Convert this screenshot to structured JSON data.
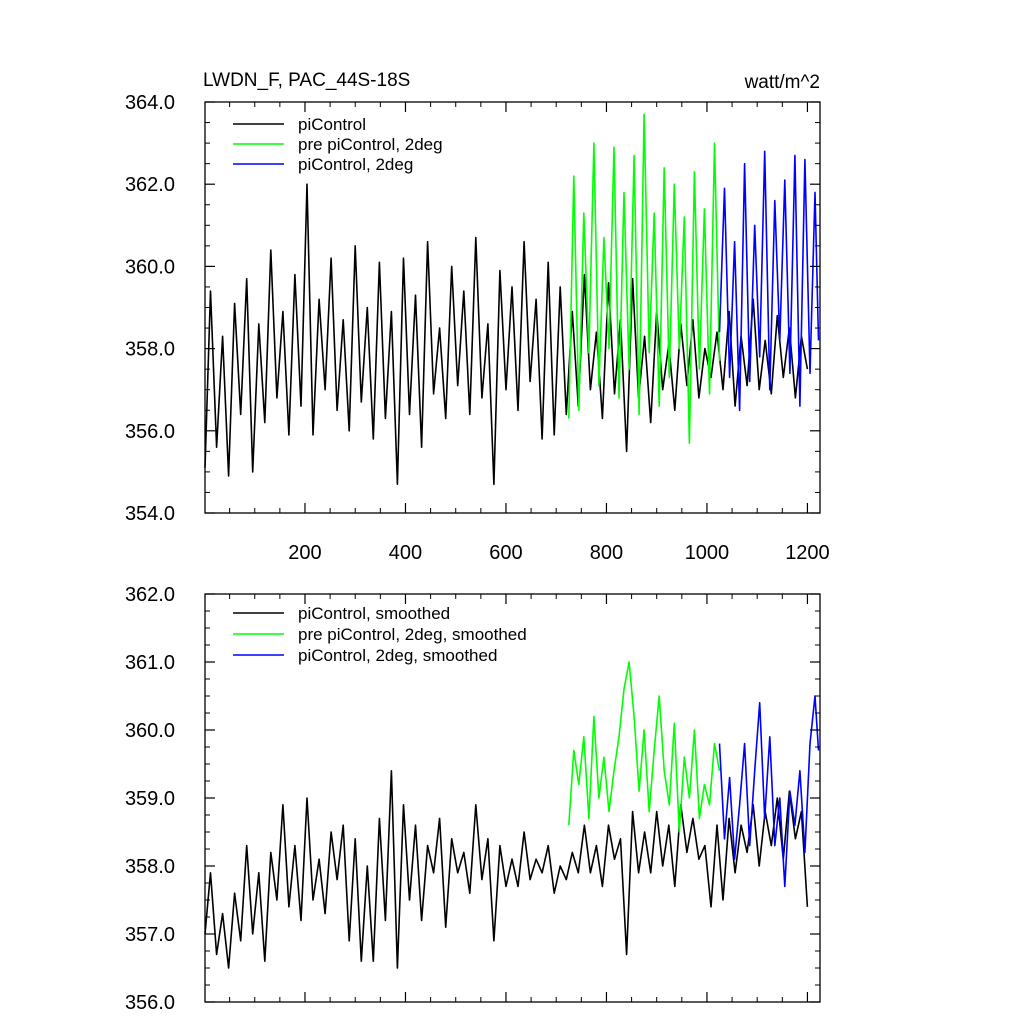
{
  "figure": {
    "title_left": "LWDN_F, PAC_44S-18S",
    "title_right": "watt/m^2"
  },
  "colors": {
    "piControl": "#000000",
    "pre_piControl_2deg": "#00ff00",
    "piControl_2deg": "#0000ff",
    "axis": "#000000"
  },
  "chart_data": [
    {
      "type": "line",
      "panel": "top",
      "title": "LWDN_F, PAC_44S-18S",
      "units": "watt/m^2",
      "xlim": [
        1,
        1225
      ],
      "ylim": [
        354.0,
        364.0
      ],
      "x_ticks": [
        200,
        400,
        600,
        800,
        1000,
        1200
      ],
      "x_tick_labels": [
        "200",
        "400",
        "600",
        "800",
        "1000",
        "1200"
      ],
      "y_ticks": [
        354,
        356,
        358,
        360,
        362,
        364
      ],
      "y_tick_labels": [
        "354.0",
        "356.0",
        "358.0",
        "360.0",
        "362.0",
        "364.0"
      ],
      "legend": [
        "piControl",
        "pre piControl, 2deg",
        "piControl, 2deg"
      ],
      "legend_position": "top-left",
      "series": [
        {
          "name": "piControl",
          "color_key": "piControl",
          "x": [
            1,
            12,
            24,
            36,
            48,
            60,
            72,
            84,
            96,
            108,
            120,
            132,
            144,
            156,
            168,
            180,
            192,
            204,
            216,
            228,
            240,
            252,
            264,
            276,
            288,
            300,
            312,
            324,
            336,
            348,
            360,
            372,
            384,
            396,
            408,
            420,
            432,
            444,
            456,
            468,
            480,
            492,
            504,
            516,
            528,
            540,
            552,
            564,
            576,
            588,
            600,
            612,
            624,
            636,
            648,
            660,
            672,
            684,
            696,
            708,
            720,
            732,
            744,
            756,
            768,
            780,
            792,
            804,
            816,
            828,
            840,
            852,
            864,
            876,
            888,
            900,
            912,
            924,
            936,
            948,
            960,
            972,
            984,
            996,
            1008,
            1020,
            1032,
            1044,
            1056,
            1068,
            1080,
            1092,
            1104,
            1116,
            1128,
            1140,
            1152,
            1164,
            1176,
            1188,
            1200
          ],
          "values": [
            355.1,
            359.4,
            355.6,
            358.3,
            354.9,
            359.1,
            356.4,
            359.7,
            355.0,
            358.6,
            356.2,
            360.4,
            356.8,
            358.9,
            355.9,
            359.8,
            356.6,
            362.0,
            355.9,
            359.2,
            357.0,
            360.2,
            356.5,
            358.7,
            356.0,
            360.5,
            356.7,
            359.0,
            355.8,
            360.1,
            356.3,
            358.9,
            354.7,
            360.2,
            356.4,
            359.3,
            355.6,
            360.6,
            356.9,
            358.5,
            356.3,
            360.0,
            357.1,
            359.4,
            356.4,
            360.7,
            356.8,
            358.6,
            354.7,
            359.9,
            357.0,
            359.5,
            356.5,
            360.6,
            357.2,
            359.2,
            355.8,
            360.1,
            355.9,
            359.5,
            356.4,
            358.9,
            356.6,
            359.8,
            357.0,
            358.4,
            356.3,
            359.6,
            356.9,
            358.7,
            355.5,
            359.7,
            356.8,
            358.3,
            356.2,
            358.9,
            357.0,
            358.1,
            356.5,
            358.6,
            357.1,
            358.7,
            356.8,
            358.0,
            357.3,
            358.4,
            357.0,
            358.9,
            356.6,
            358.3,
            357.1,
            359.2,
            357.0,
            358.2,
            356.9,
            358.8,
            357.3,
            358.5,
            356.8,
            358.3,
            357.5
          ]
        },
        {
          "name": "pre piControl, 2deg",
          "color_key": "pre_piControl_2deg",
          "x": [
            725,
            735,
            745,
            755,
            765,
            775,
            785,
            795,
            805,
            815,
            825,
            835,
            845,
            855,
            865,
            875,
            885,
            895,
            905,
            915,
            925,
            935,
            945,
            955,
            965,
            975,
            985,
            995,
            1005,
            1015,
            1025
          ],
          "values": [
            356.3,
            362.2,
            356.5,
            361.3,
            357.9,
            363.0,
            357.1,
            360.7,
            358.0,
            362.9,
            356.8,
            361.8,
            357.5,
            362.7,
            356.4,
            363.7,
            357.9,
            361.3,
            356.6,
            362.4,
            357.3,
            362.0,
            358.0,
            361.2,
            355.7,
            362.3,
            357.5,
            361.4,
            356.9,
            363.0,
            357.7
          ]
        },
        {
          "name": "piControl, 2deg",
          "color_key": "piControl_2deg",
          "x": [
            1025,
            1035,
            1045,
            1055,
            1065,
            1075,
            1085,
            1095,
            1105,
            1115,
            1125,
            1135,
            1145,
            1155,
            1165,
            1175,
            1185,
            1195,
            1205,
            1215,
            1222
          ],
          "values": [
            358.4,
            361.9,
            357.3,
            360.6,
            356.5,
            362.5,
            357.2,
            361.0,
            357.8,
            362.8,
            357.0,
            361.6,
            358.2,
            362.1,
            357.4,
            362.7,
            356.6,
            362.6,
            357.4,
            361.8,
            358.2
          ]
        }
      ]
    },
    {
      "type": "line",
      "panel": "bottom",
      "xlim": [
        1,
        1225
      ],
      "ylim": [
        356.0,
        362.0
      ],
      "x_ticks": [
        200,
        400,
        600,
        800,
        1000,
        1200
      ],
      "y_ticks": [
        356,
        357,
        358,
        359,
        360,
        361,
        362
      ],
      "y_tick_labels": [
        "356.0",
        "357.0",
        "358.0",
        "359.0",
        "360.0",
        "361.0",
        "362.0"
      ],
      "legend": [
        "piControl, smoothed",
        "pre piControl, 2deg, smoothed",
        "piControl, 2deg, smoothed"
      ],
      "legend_position": "top-left",
      "series": [
        {
          "name": "piControl, smoothed",
          "color_key": "piControl",
          "x": [
            1,
            12,
            24,
            36,
            48,
            60,
            72,
            84,
            96,
            108,
            120,
            132,
            144,
            156,
            168,
            180,
            192,
            204,
            216,
            228,
            240,
            252,
            264,
            276,
            288,
            300,
            312,
            324,
            336,
            348,
            360,
            372,
            384,
            396,
            408,
            420,
            432,
            444,
            456,
            468,
            480,
            492,
            504,
            516,
            528,
            540,
            552,
            564,
            576,
            588,
            600,
            612,
            624,
            636,
            648,
            660,
            672,
            684,
            696,
            708,
            720,
            732,
            744,
            756,
            768,
            780,
            792,
            804,
            816,
            828,
            840,
            852,
            864,
            876,
            888,
            900,
            912,
            924,
            936,
            948,
            960,
            972,
            984,
            996,
            1008,
            1020,
            1032,
            1044,
            1056,
            1068,
            1080,
            1092,
            1104,
            1116,
            1128,
            1140,
            1152,
            1164,
            1176,
            1188,
            1200
          ],
          "values": [
            357.0,
            357.9,
            356.7,
            357.3,
            356.5,
            357.6,
            356.9,
            358.3,
            357.0,
            357.9,
            356.6,
            358.2,
            357.5,
            358.9,
            357.4,
            358.3,
            357.2,
            359.0,
            357.5,
            358.1,
            357.3,
            358.5,
            357.8,
            358.6,
            356.9,
            358.4,
            356.6,
            358.0,
            356.6,
            358.7,
            357.2,
            359.4,
            356.5,
            358.9,
            357.5,
            358.6,
            357.2,
            358.3,
            357.9,
            358.7,
            357.1,
            358.4,
            357.9,
            358.2,
            357.6,
            358.9,
            357.8,
            358.4,
            356.9,
            358.3,
            357.7,
            358.1,
            357.7,
            358.5,
            357.8,
            358.1,
            357.9,
            358.3,
            357.6,
            358.0,
            357.8,
            358.2,
            357.9,
            358.6,
            357.9,
            358.3,
            357.7,
            358.6,
            358.1,
            358.4,
            356.7,
            358.8,
            357.9,
            358.5,
            357.9,
            358.8,
            358.0,
            358.6,
            357.7,
            358.9,
            358.2,
            358.7,
            358.1,
            358.3,
            357.4,
            358.6,
            357.5,
            358.7,
            357.9,
            358.6,
            358.2,
            358.9,
            358.0,
            358.8,
            358.3,
            359.0,
            358.1,
            359.1,
            358.4,
            358.8,
            357.4
          ]
        },
        {
          "name": "pre piControl, 2deg, smoothed",
          "color_key": "pre_piControl_2deg",
          "x": [
            725,
            735,
            745,
            755,
            765,
            775,
            785,
            795,
            805,
            815,
            825,
            835,
            845,
            855,
            865,
            875,
            885,
            895,
            905,
            915,
            925,
            935,
            945,
            955,
            965,
            975,
            985,
            995,
            1005,
            1015,
            1025
          ],
          "values": [
            358.6,
            359.7,
            359.2,
            359.9,
            358.7,
            360.2,
            359.0,
            359.6,
            358.8,
            359.4,
            359.9,
            360.6,
            361.0,
            360.2,
            359.1,
            360.0,
            358.8,
            359.7,
            360.5,
            359.4,
            358.9,
            360.1,
            358.5,
            359.6,
            359.0,
            360.0,
            358.7,
            359.2,
            358.9,
            359.8,
            359.4
          ]
        },
        {
          "name": "piControl, 2deg, smoothed",
          "color_key": "piControl_2deg",
          "x": [
            1025,
            1035,
            1045,
            1055,
            1065,
            1075,
            1085,
            1095,
            1105,
            1115,
            1125,
            1135,
            1145,
            1155,
            1165,
            1175,
            1185,
            1195,
            1205,
            1215,
            1222
          ],
          "values": [
            359.8,
            358.4,
            359.3,
            358.1,
            358.9,
            359.8,
            358.3,
            359.4,
            360.4,
            358.7,
            359.9,
            358.3,
            359.0,
            357.7,
            359.1,
            358.6,
            359.4,
            358.2,
            359.8,
            360.5,
            359.7
          ]
        }
      ]
    }
  ]
}
